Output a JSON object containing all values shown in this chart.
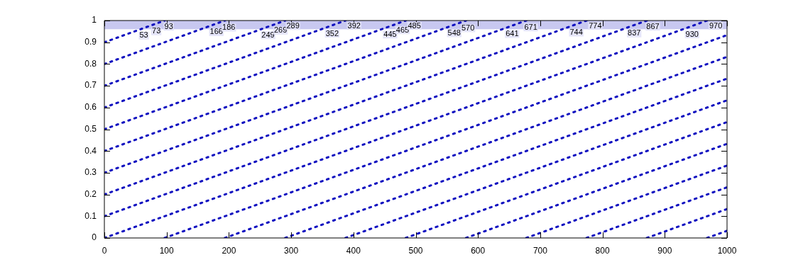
{
  "chart_data": {
    "type": "line",
    "line_style": "dotted",
    "marker": "none",
    "xlim": [
      0,
      1000
    ],
    "ylim": [
      0,
      1
    ],
    "xticks": [
      0,
      100,
      200,
      300,
      400,
      500,
      600,
      700,
      800,
      900,
      1000
    ],
    "yticks": [
      0,
      0.1,
      0.2,
      0.3,
      0.4,
      0.5,
      0.6,
      0.7,
      0.8,
      0.9,
      1
    ],
    "bands": [
      {
        "axis": "y",
        "from": 0.96,
        "to": 1,
        "color": "#c8c8f0"
      }
    ],
    "series": [
      {
        "color": "#1010c0",
        "x": [
          0,
          968,
          968,
          1000
        ],
        "values": [
          0,
          1,
          0,
          0.033
        ]
      },
      {
        "color": "#1010c0",
        "x": [
          0,
          871.2,
          871.2,
          1000
        ],
        "values": [
          0.1,
          1,
          0,
          0.133
        ]
      },
      {
        "color": "#1010c0",
        "x": [
          0,
          774.4,
          774.4,
          1000
        ],
        "values": [
          0.2,
          1,
          0,
          0.233
        ]
      },
      {
        "color": "#1010c0",
        "x": [
          0,
          677.6,
          677.6,
          1000
        ],
        "values": [
          0.3,
          1,
          0,
          0.333
        ]
      },
      {
        "color": "#1010c0",
        "x": [
          0,
          580.8,
          580.8,
          1000
        ],
        "values": [
          0.4,
          1,
          0,
          0.433
        ]
      },
      {
        "color": "#1010c0",
        "x": [
          0,
          484,
          484,
          1000
        ],
        "values": [
          0.5,
          1,
          0,
          0.533
        ]
      },
      {
        "color": "#1010c0",
        "x": [
          0,
          387.2,
          387.2,
          1000
        ],
        "values": [
          0.6,
          1,
          0,
          0.633
        ]
      },
      {
        "color": "#1010c0",
        "x": [
          0,
          290.4,
          290.4,
          1000
        ],
        "values": [
          0.7,
          1,
          0,
          0.733
        ]
      },
      {
        "color": "#1010c0",
        "x": [
          0,
          193.6,
          193.6,
          1000
        ],
        "values": [
          0.8,
          1,
          0,
          0.833
        ]
      },
      {
        "color": "#1010c0",
        "x": [
          0,
          96.8,
          96.8,
          1000
        ],
        "values": [
          0.9,
          1,
          0,
          0.933
        ]
      }
    ],
    "annotations": [
      {
        "text": "53",
        "x": 53,
        "y": 0.955
      },
      {
        "text": "73",
        "x": 73,
        "y": 0.975
      },
      {
        "text": "93",
        "x": 93,
        "y": 0.996
      },
      {
        "text": "166",
        "x": 166,
        "y": 0.971
      },
      {
        "text": "186",
        "x": 186,
        "y": 0.992
      },
      {
        "text": "249",
        "x": 249,
        "y": 0.957
      },
      {
        "text": "269",
        "x": 269,
        "y": 0.978
      },
      {
        "text": "289",
        "x": 289,
        "y": 0.999
      },
      {
        "text": "352",
        "x": 352,
        "y": 0.964
      },
      {
        "text": "392",
        "x": 387.2,
        "y": 1
      },
      {
        "text": "445",
        "x": 445,
        "y": 0.96
      },
      {
        "text": "465",
        "x": 465,
        "y": 0.98
      },
      {
        "text": "485",
        "x": 484,
        "y": 1
      },
      {
        "text": "548",
        "x": 548,
        "y": 0.966
      },
      {
        "text": "570",
        "x": 570,
        "y": 0.989
      },
      {
        "text": "641",
        "x": 641,
        "y": 0.962
      },
      {
        "text": "671",
        "x": 671,
        "y": 0.993
      },
      {
        "text": "744",
        "x": 744,
        "y": 0.969
      },
      {
        "text": "774",
        "x": 774.4,
        "y": 1
      },
      {
        "text": "837",
        "x": 837,
        "y": 0.965
      },
      {
        "text": "867",
        "x": 867,
        "y": 0.996
      },
      {
        "text": "930",
        "x": 930,
        "y": 0.961
      },
      {
        "text": "970",
        "x": 968,
        "y": 1
      }
    ]
  }
}
